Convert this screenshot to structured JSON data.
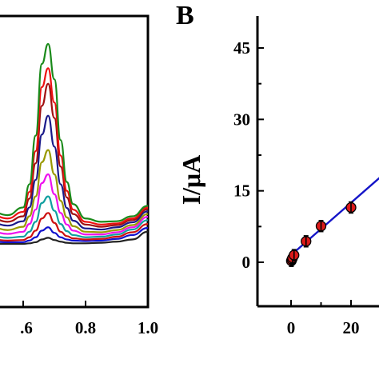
{
  "chart_data": [
    {
      "type": "line",
      "panel": "A",
      "xlabel": "",
      "ylabel": "",
      "xlim": [
        0.5,
        1.0
      ],
      "x_ticks": [
        0.6,
        0.8,
        1.0
      ],
      "x_tick_labels": [
        ".6",
        "0.8",
        "1.0"
      ],
      "grid": false,
      "x": [
        0.5,
        0.55,
        0.6,
        0.62,
        0.64,
        0.66,
        0.68,
        0.7,
        0.72,
        0.74,
        0.76,
        0.8,
        0.85,
        0.9,
        0.95,
        1.0
      ],
      "series": [
        {
          "color": "#222222",
          "values": [
            0.0,
            0.0,
            0.0,
            0.1,
            0.3,
            0.8,
            1.1,
            0.7,
            0.4,
            0.2,
            0.1,
            0.1,
            0.2,
            0.4,
            0.8,
            2.2
          ]
        },
        {
          "color": "#1111cc",
          "values": [
            0.4,
            0.3,
            0.3,
            0.6,
            1.2,
            2.4,
            3.0,
            2.0,
            1.2,
            0.8,
            0.6,
            0.5,
            0.6,
            0.9,
            1.6,
            2.9
          ]
        },
        {
          "color": "#cc1111",
          "values": [
            0.8,
            0.6,
            0.7,
            1.2,
            2.4,
            4.6,
            5.6,
            3.8,
            2.2,
            1.4,
            1.0,
            0.8,
            0.9,
            1.3,
            2.1,
            3.6
          ]
        },
        {
          "color": "#11a0a0",
          "values": [
            1.4,
            1.1,
            1.3,
            2.2,
            4.0,
            7.4,
            8.6,
            6.0,
            3.6,
            2.3,
            1.6,
            1.2,
            1.3,
            1.7,
            2.6,
            4.3
          ]
        },
        {
          "color": "#ee11ee",
          "values": [
            2.2,
            1.8,
            2.2,
            3.6,
            6.2,
            11.0,
            12.6,
            9.0,
            5.6,
            3.5,
            2.4,
            1.7,
            1.7,
            2.1,
            3.0,
            4.9
          ]
        },
        {
          "color": "#999900",
          "values": [
            3.0,
            2.5,
            3.1,
            5.0,
            8.6,
            14.8,
            17.0,
            12.6,
            7.8,
            4.8,
            3.2,
            2.2,
            2.1,
            2.5,
            3.4,
            5.4
          ]
        },
        {
          "color": "#1a1a8a",
          "values": [
            3.8,
            3.3,
            4.1,
            6.6,
            11.6,
            19.8,
            23.2,
            17.6,
            10.8,
            6.5,
            4.2,
            2.8,
            2.6,
            3.0,
            3.9,
            5.9
          ]
        },
        {
          "color": "#a01010",
          "values": [
            4.6,
            4.0,
            5.0,
            8.2,
            14.6,
            25.0,
            29.0,
            22.8,
            14.0,
            8.4,
            5.4,
            3.5,
            3.1,
            3.4,
            4.3,
            6.3
          ]
        },
        {
          "color": "#ee1111",
          "values": [
            5.2,
            4.6,
            5.8,
            9.4,
            16.8,
            28.4,
            31.8,
            25.6,
            16.0,
            9.6,
            6.2,
            4.0,
            3.5,
            3.7,
            4.6,
            6.6
          ]
        },
        {
          "color": "#1a8a1a",
          "values": [
            5.8,
            5.2,
            6.6,
            10.8,
            19.6,
            32.6,
            36.2,
            29.8,
            18.8,
            11.2,
            7.2,
            4.6,
            4.0,
            4.1,
            5.0,
            6.9
          ]
        }
      ]
    },
    {
      "type": "scatter",
      "panel": "B",
      "ylabel": "I/μA",
      "xlabel": "",
      "xlim": [
        -5,
        30
      ],
      "ylim": [
        -10,
        50
      ],
      "x_ticks": [
        0,
        20
      ],
      "y_ticks": [
        0,
        15,
        30,
        45
      ],
      "grid": false,
      "points": [
        {
          "x": 0.1,
          "y": 0.3
        },
        {
          "x": 0.3,
          "y": 0.6
        },
        {
          "x": 0.5,
          "y": 0.9
        },
        {
          "x": 1.0,
          "y": 1.5
        },
        {
          "x": 5.0,
          "y": 4.4
        },
        {
          "x": 10.0,
          "y": 7.6
        },
        {
          "x": 20.0,
          "y": 11.5
        }
      ],
      "fit_line": {
        "color": "#1515c8",
        "x": [
          0,
          30
        ],
        "y": [
          1.5,
          18.0
        ]
      },
      "marker_color": "#dd1a1a"
    }
  ],
  "figure": {
    "panel_b_letter": "B",
    "ylabel_b": "I/μA"
  }
}
